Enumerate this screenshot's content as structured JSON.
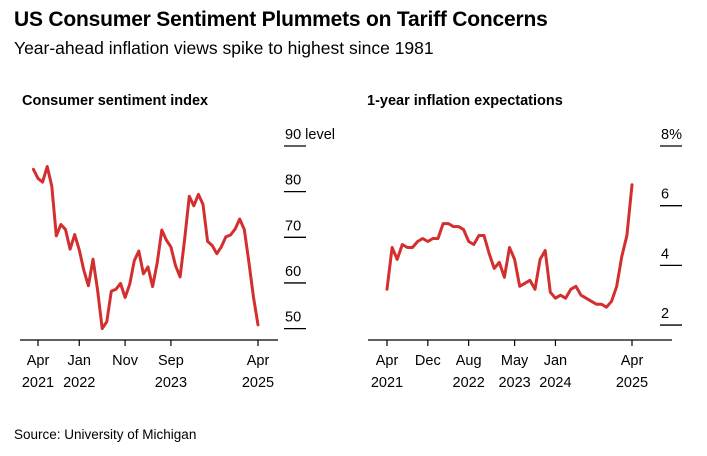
{
  "title": "US Consumer Sentiment Plummets on Tariff Concerns",
  "subtitle": "Year-ahead inflation views spike to highest since 1981",
  "source": "Source: University of Michigan",
  "colors": {
    "line": "#d32f2f",
    "axis": "#000000"
  },
  "chart_data": [
    {
      "type": "line",
      "title": "Consumer sentiment index",
      "y_unit": "level",
      "ylim": [
        47.5,
        90
      ],
      "yticks": [
        {
          "value": 90,
          "label": "90"
        },
        {
          "value": 80,
          "label": "80"
        },
        {
          "value": 70,
          "label": "70"
        },
        {
          "value": 60,
          "label": "60"
        },
        {
          "value": 50,
          "label": "50"
        }
      ],
      "xticks": [
        {
          "date": "2021-04",
          "line1": "Apr",
          "line2": "2021"
        },
        {
          "date": "2022-01",
          "line1": "Jan",
          "line2": "2022"
        },
        {
          "date": "2022-11",
          "line1": "Nov",
          "line2": ""
        },
        {
          "date": "2023-09",
          "line1": "Sep",
          "line2": "2023"
        },
        {
          "date": "2025-04",
          "line1": "Apr",
          "line2": "2025"
        }
      ],
      "series": [
        {
          "x": [
            "2021-03",
            "2021-04",
            "2021-05",
            "2021-06",
            "2021-07",
            "2021-08",
            "2021-09",
            "2021-10",
            "2021-11",
            "2021-12",
            "2022-01",
            "2022-02",
            "2022-03",
            "2022-04",
            "2022-05",
            "2022-06",
            "2022-07",
            "2022-08",
            "2022-09",
            "2022-10",
            "2022-11",
            "2022-12",
            "2023-01",
            "2023-02",
            "2023-03",
            "2023-04",
            "2023-05",
            "2023-06",
            "2023-07",
            "2023-08",
            "2023-09",
            "2023-10",
            "2023-11",
            "2023-12",
            "2024-01",
            "2024-02",
            "2024-03",
            "2024-04",
            "2024-05",
            "2024-06",
            "2024-07",
            "2024-08",
            "2024-09",
            "2024-10",
            "2024-11",
            "2024-12",
            "2025-01",
            "2025-02",
            "2025-03",
            "2025-04"
          ],
          "values": [
            84.9,
            82.9,
            82.1,
            85.5,
            81.2,
            70.3,
            72.8,
            71.7,
            67.4,
            70.6,
            67.2,
            62.8,
            59.4,
            65.2,
            58.4,
            50.0,
            51.5,
            58.2,
            58.6,
            59.9,
            56.8,
            59.7,
            64.9,
            67.0,
            62.0,
            63.5,
            59.2,
            64.4,
            71.6,
            69.4,
            67.9,
            63.8,
            61.3,
            69.7,
            79.0,
            76.9,
            79.4,
            77.2,
            69.1,
            68.2,
            66.4,
            67.9,
            70.1,
            70.5,
            71.8,
            74.0,
            71.7,
            64.7,
            57.0,
            50.8
          ]
        }
      ]
    },
    {
      "type": "line",
      "title": "1-year inflation expectations",
      "y_unit": "%",
      "ylim": [
        1.5,
        8
      ],
      "yticks": [
        {
          "value": 8,
          "label": "8"
        },
        {
          "value": 6,
          "label": "6"
        },
        {
          "value": 4,
          "label": "4"
        },
        {
          "value": 2,
          "label": "2"
        }
      ],
      "xticks": [
        {
          "date": "2021-04",
          "line1": "Apr",
          "line2": "2021"
        },
        {
          "date": "2021-12",
          "line1": "Dec",
          "line2": ""
        },
        {
          "date": "2022-08",
          "line1": "Aug",
          "line2": "2022"
        },
        {
          "date": "2023-05",
          "line1": "May",
          "line2": "2023"
        },
        {
          "date": "2024-01",
          "line1": "Jan",
          "line2": "2024"
        },
        {
          "date": "2025-04",
          "line1": "Apr",
          "line2": "2025"
        }
      ],
      "series": [
        {
          "x": [
            "2021-04",
            "2021-05",
            "2021-06",
            "2021-07",
            "2021-08",
            "2021-09",
            "2021-10",
            "2021-11",
            "2021-12",
            "2022-01",
            "2022-02",
            "2022-03",
            "2022-04",
            "2022-05",
            "2022-06",
            "2022-07",
            "2022-08",
            "2022-09",
            "2022-10",
            "2022-11",
            "2022-12",
            "2023-01",
            "2023-02",
            "2023-03",
            "2023-04",
            "2023-05",
            "2023-06",
            "2023-07",
            "2023-08",
            "2023-09",
            "2023-10",
            "2023-11",
            "2023-12",
            "2024-01",
            "2024-02",
            "2024-03",
            "2024-04",
            "2024-05",
            "2024-06",
            "2024-07",
            "2024-08",
            "2024-09",
            "2024-10",
            "2024-11",
            "2024-12",
            "2025-01",
            "2025-02",
            "2025-03",
            "2025-04"
          ],
          "values": [
            3.2,
            4.6,
            4.2,
            4.7,
            4.6,
            4.6,
            4.8,
            4.9,
            4.8,
            4.9,
            4.9,
            5.4,
            5.4,
            5.3,
            5.3,
            5.2,
            4.8,
            4.7,
            5.0,
            5.0,
            4.4,
            3.9,
            4.1,
            3.6,
            4.6,
            4.2,
            3.3,
            3.4,
            3.5,
            3.2,
            4.2,
            4.5,
            3.1,
            2.9,
            3.0,
            2.9,
            3.2,
            3.3,
            3.0,
            2.9,
            2.8,
            2.7,
            2.7,
            2.6,
            2.8,
            3.3,
            4.3,
            5.0,
            6.7
          ]
        }
      ]
    }
  ]
}
